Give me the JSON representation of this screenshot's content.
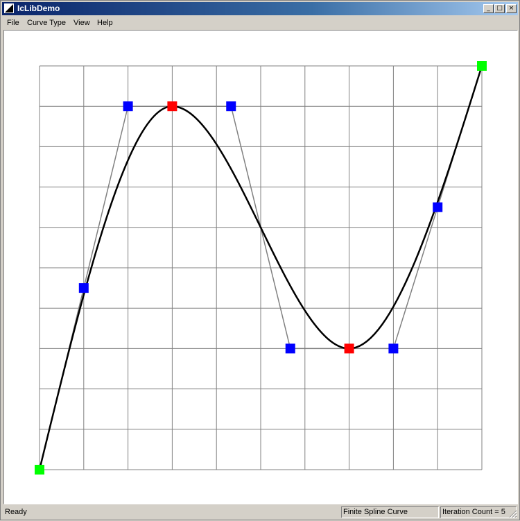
{
  "window": {
    "title": "IcLibDemo",
    "minimize_glyph": "_",
    "maximize_glyph": "□",
    "close_glyph": "×"
  },
  "menu": [
    "File",
    "Curve Type",
    "View",
    "Help"
  ],
  "canvas": {
    "grid_x": [
      0,
      1,
      2,
      3,
      4,
      5,
      6,
      7,
      8,
      9,
      10
    ],
    "grid_y": [
      0,
      1,
      2,
      3,
      4,
      5,
      6,
      7,
      8,
      9,
      10
    ],
    "control_points": [
      {
        "x": 0,
        "y": 0,
        "kind": "endpoint"
      },
      {
        "x": 1,
        "y": 4.5,
        "kind": "tangent"
      },
      {
        "x": 2,
        "y": 9,
        "kind": "tangent"
      },
      {
        "x": 3,
        "y": 9,
        "kind": "knot"
      },
      {
        "x": 4.33,
        "y": 9,
        "kind": "tangent"
      },
      {
        "x": 5.67,
        "y": 3,
        "kind": "tangent"
      },
      {
        "x": 7,
        "y": 3,
        "kind": "knot"
      },
      {
        "x": 8,
        "y": 3,
        "kind": "tangent"
      },
      {
        "x": 9,
        "y": 6.5,
        "kind": "tangent"
      },
      {
        "x": 10,
        "y": 10,
        "kind": "endpoint"
      }
    ],
    "colors": {
      "grid": "#808080",
      "polygon": "#808080",
      "curve": "#000000",
      "endpoint": "#00ff00",
      "tangent": "#0000ff",
      "knot": "#ff0000"
    }
  },
  "status": {
    "left": "Ready",
    "curve_type": "Finite Spline Curve",
    "iteration": "Iteration Count = 5"
  }
}
